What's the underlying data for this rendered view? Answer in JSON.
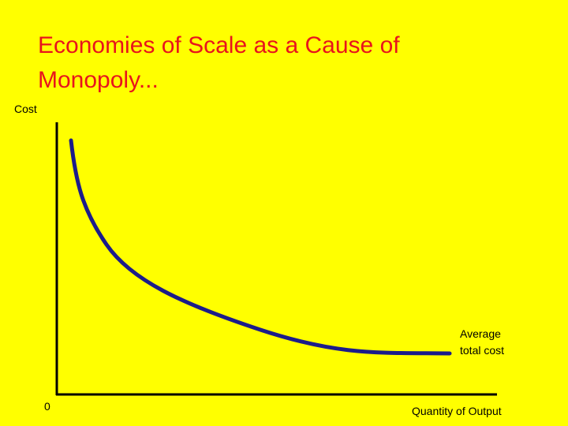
{
  "header": {
    "title": "Economies of Scale as a Cause of Monopoly..."
  },
  "axes": {
    "y_label": "Cost",
    "origin": "0",
    "x_label": "Quantity of Output"
  },
  "curve": {
    "label": "Average total cost"
  }
}
